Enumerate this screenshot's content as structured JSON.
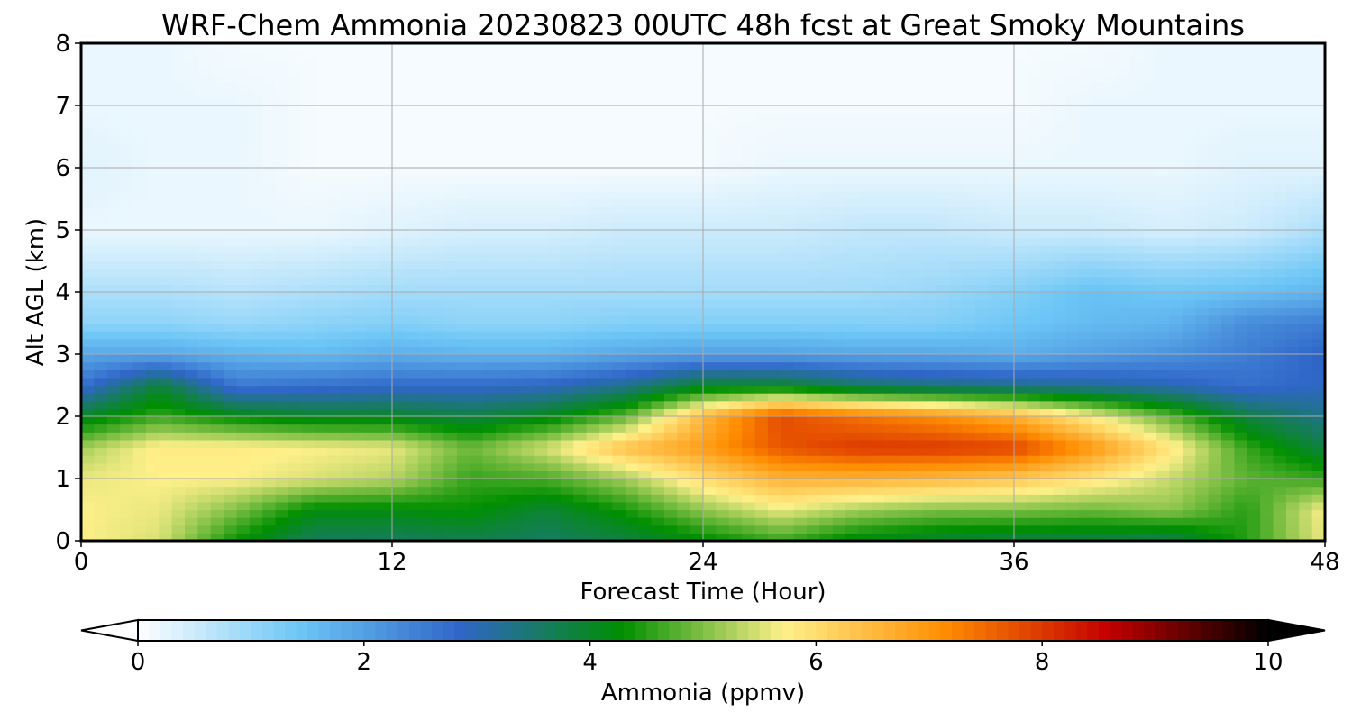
{
  "chart_data": {
    "type": "heatmap",
    "title": "WRF-Chem Ammonia  20230823 00UTC 48h fcst at Great Smoky Mountains",
    "xlabel": "Forecast Time (Hour)",
    "ylabel": "Alt AGL (km)",
    "xlim": [
      0,
      48
    ],
    "ylim": [
      0,
      8
    ],
    "xticks": [
      "0",
      "12",
      "24",
      "36",
      "48"
    ],
    "yticks": [
      "0",
      "1",
      "2",
      "3",
      "4",
      "5",
      "6",
      "7",
      "8"
    ],
    "grid": true,
    "colorbar": {
      "label": "Ammonia  (ppmv)",
      "min": 0,
      "max": 10,
      "ticks": [
        "0",
        "2",
        "4",
        "6",
        "8",
        "10"
      ],
      "extend": "both",
      "colors": [
        "#ffffff",
        "#6cc6f6",
        "#2f66c8",
        "#008f00",
        "#fff08a",
        "#ff8c00",
        "#c40000",
        "#000000"
      ]
    },
    "x_hours": [
      0,
      3,
      6,
      9,
      12,
      15,
      18,
      21,
      24,
      27,
      30,
      33,
      36,
      39,
      42,
      45,
      48
    ],
    "altitudes_km": [
      0,
      0.5,
      1,
      1.5,
      2,
      2.5,
      3,
      3.5,
      4,
      5,
      6,
      7,
      8
    ],
    "values": [
      [
        5.7,
        5.5,
        4.3,
        3.6,
        3.6,
        3.7,
        3.6,
        3.8,
        4.2,
        4.6,
        4.1,
        3.9,
        3.8,
        3.8,
        3.7,
        4.5,
        5.6
      ],
      [
        5.7,
        5.6,
        5.0,
        4.2,
        4.2,
        4.3,
        3.9,
        4.4,
        5.1,
        5.6,
        5.2,
        5.0,
        5.0,
        4.9,
        5.1,
        4.5,
        5.7
      ],
      [
        5.6,
        5.7,
        5.7,
        5.5,
        5.3,
        4.6,
        4.7,
        5.2,
        6.0,
        6.6,
        6.6,
        6.5,
        6.3,
        5.9,
        5.4,
        4.8,
        4.6
      ],
      [
        5.2,
        5.8,
        5.8,
        5.7,
        5.6,
        4.9,
        5.5,
        6.4,
        6.9,
        7.7,
        8.0,
        8.0,
        7.9,
        7.0,
        5.9,
        4.6,
        3.8
      ],
      [
        4.0,
        4.6,
        4.2,
        4.0,
        4.0,
        3.8,
        4.1,
        4.8,
        6.5,
        7.8,
        7.4,
        7.1,
        6.6,
        5.7,
        4.8,
        3.8,
        3.3
      ],
      [
        2.7,
        3.9,
        2.6,
        2.7,
        2.8,
        2.8,
        2.9,
        3.3,
        4.0,
        4.0,
        3.6,
        3.4,
        3.3,
        3.2,
        3.0,
        2.7,
        2.9
      ],
      [
        1.9,
        1.9,
        1.7,
        1.6,
        1.8,
        1.7,
        1.7,
        1.9,
        2.0,
        2.0,
        1.9,
        1.9,
        1.8,
        2.0,
        2.2,
        2.5,
        2.9
      ],
      [
        1.1,
        1.1,
        1.0,
        1.1,
        1.2,
        1.1,
        1.1,
        1.2,
        1.2,
        1.2,
        1.2,
        1.2,
        1.4,
        1.6,
        1.7,
        2.3,
        2.5
      ],
      [
        0.8,
        0.8,
        0.7,
        0.8,
        0.9,
        0.9,
        0.9,
        0.9,
        0.9,
        0.9,
        0.9,
        1.0,
        1.2,
        1.5,
        1.4,
        1.5,
        1.7
      ],
      [
        0.2,
        0.2,
        0.2,
        0.2,
        0.3,
        0.4,
        0.4,
        0.5,
        0.5,
        0.5,
        0.6,
        0.6,
        0.5,
        0.5,
        0.4,
        0.5,
        0.8
      ],
      [
        0.3,
        0.2,
        0.2,
        0.1,
        0.1,
        0.1,
        0.1,
        0.1,
        0.1,
        0.2,
        0.2,
        0.2,
        0.2,
        0.2,
        0.2,
        0.3,
        0.3
      ],
      [
        0.2,
        0.2,
        0.2,
        0.1,
        0.1,
        0.1,
        0.1,
        0.1,
        0.1,
        0.1,
        0.1,
        0.1,
        0.1,
        0.2,
        0.2,
        0.2,
        0.2
      ],
      [
        0.2,
        0.2,
        0.1,
        0.1,
        0.1,
        0.1,
        0.1,
        0.1,
        0.1,
        0.1,
        0.1,
        0.1,
        0.1,
        0.1,
        0.2,
        0.2,
        0.2
      ]
    ]
  }
}
